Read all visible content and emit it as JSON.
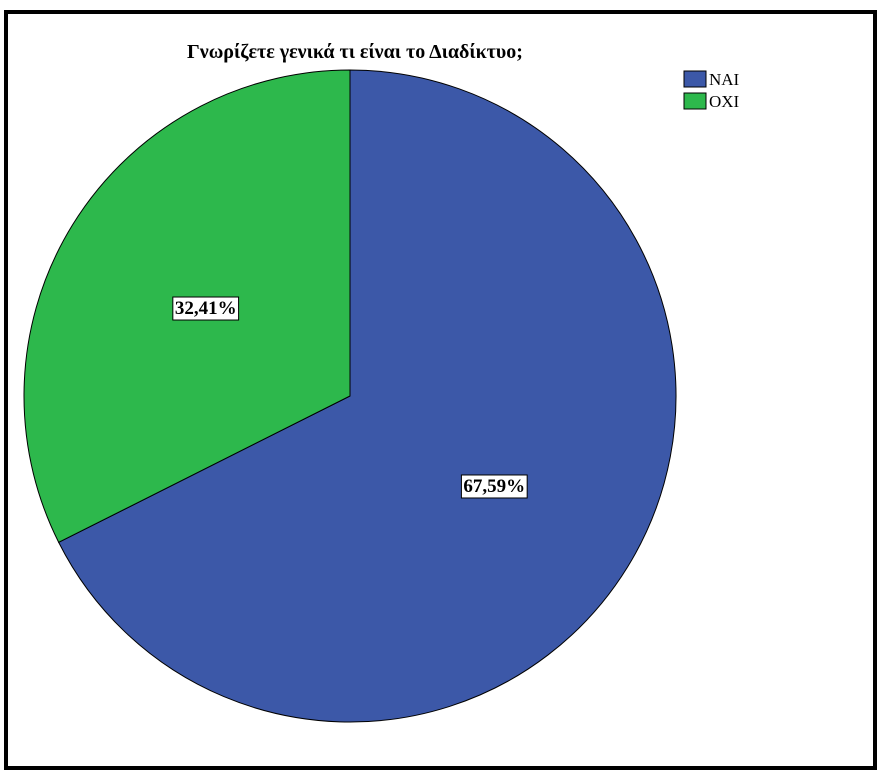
{
  "chart_data": {
    "type": "pie",
    "title": "Γνωρίζετε γενικά τι είναι το Διαδίκτυο;",
    "categories": [
      "ΝΑΙ",
      "ΟΧΙ"
    ],
    "values": [
      67.59,
      32.41
    ],
    "data_labels": [
      "67,59%",
      "32,41%"
    ],
    "colors": [
      "#3c58a8",
      "#2db84c"
    ],
    "legend_position": "top-right",
    "start_angle_deg": 0,
    "direction": "clockwise"
  }
}
